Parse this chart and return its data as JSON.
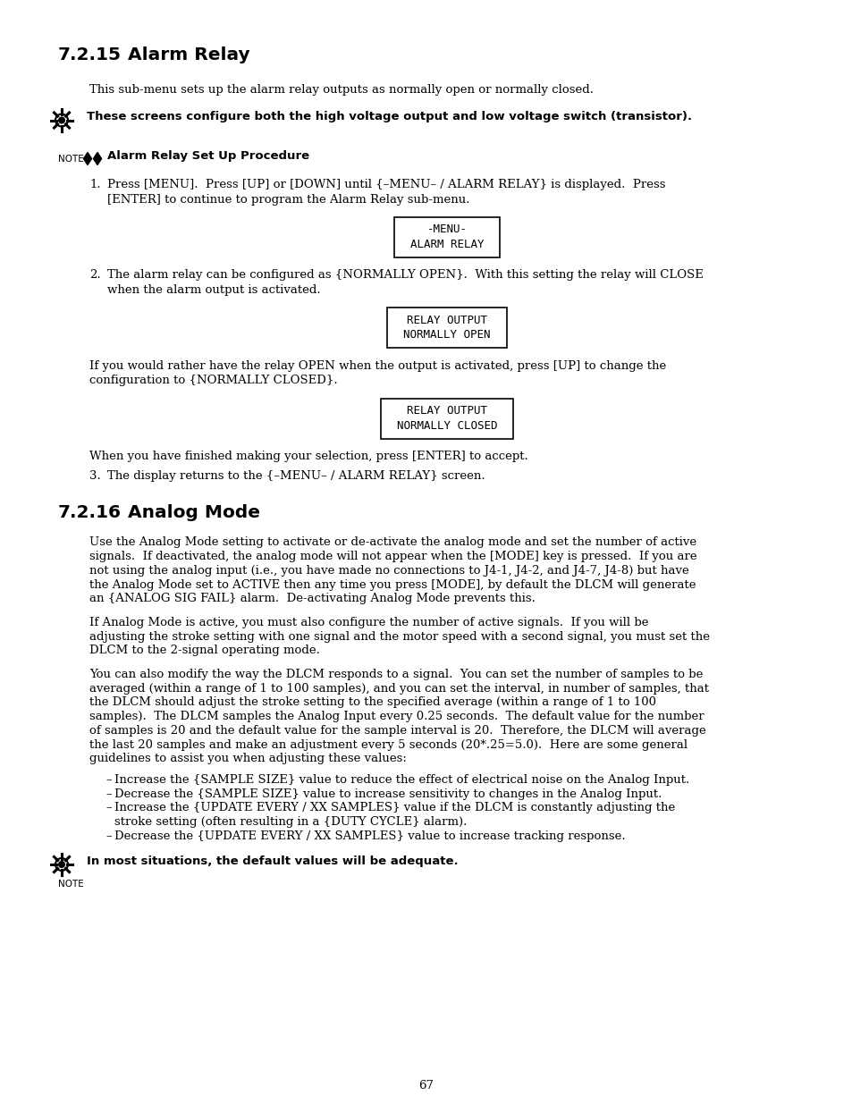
{
  "bg_color": "#ffffff",
  "page_number": "67",
  "section_715_title": "7.2.15    Alarm Relay",
  "section_716_title": "7.2.16    Analog Mode",
  "para_715_intro": "This sub-menu sets up the alarm relay outputs as normally open or normally closed.",
  "note_715_bold": "These screens configure both the high voltage output and low voltage switch (transistor).",
  "procedure_title": "Alarm Relay Set Up Procedure",
  "step1_line1": "Press [MENU].  Press [UP] or [DOWN] until {–MENU– / ALARM RELAY} is displayed.  Press",
  "step1_line2": "[ENTER] to continue to program the Alarm Relay sub-menu.",
  "box1_lines": [
    "-MENU-",
    "ALARM RELAY"
  ],
  "step2_line1": "The alarm relay can be configured as {NORMALLY OPEN}.  With this setting the relay will CLOSE",
  "step2_line2": "when the alarm output is activated.",
  "box2_lines": [
    "RELAY OUTPUT",
    "NORMALLY OPEN"
  ],
  "step2_cont_line1": "If you would rather have the relay OPEN when the output is activated, press [UP] to change the",
  "step2_cont_line2": "configuration to {NORMALLY CLOSED}.",
  "box3_lines": [
    "RELAY OUTPUT",
    "NORMALLY CLOSED"
  ],
  "step2_end": "When you have finished making your selection, press [ENTER] to accept.",
  "step3_text": "The display returns to the {–MENU– / ALARM RELAY} screen.",
  "para_716_1_lines": [
    "Use the Analog Mode setting to activate or de-activate the analog mode and set the number of active",
    "signals.  If deactivated, the analog mode will not appear when the [MODE] key is pressed.  If you are",
    "not using the analog input (i.e., you have made no connections to J4-1, J4-2, and J4-7, J4-8) but have",
    "the Analog Mode set to ACTIVE then any time you press [MODE], by default the DLCM will generate",
    "an {ANALOG SIG FAIL} alarm.  De-activating Analog Mode prevents this."
  ],
  "para_716_2_lines": [
    "If Analog Mode is active, you must also configure the number of active signals.  If you will be",
    "adjusting the stroke setting with one signal and the motor speed with a second signal, you must set the",
    "DLCM to the 2-signal operating mode."
  ],
  "para_716_3_lines": [
    "You can also modify the way the DLCM responds to a signal.  You can set the number of samples to be",
    "averaged (within a range of 1 to 100 samples), and you can set the interval, in number of samples, that",
    "the DLCM should adjust the stroke setting to the specified average (within a range of 1 to 100",
    "samples).  The DLCM samples the Analog Input every 0.25 seconds.  The default value for the number",
    "of samples is 20 and the default value for the sample interval is 20.  Therefore, the DLCM will average",
    "the last 20 samples and make an adjustment every 5 seconds (20*.25=5.0).  Here are some general",
    "guidelines to assist you when adjusting these values:"
  ],
  "bullet1_lines": [
    "Increase the {SAMPLE SIZE} value to reduce the effect of electrical noise on the Analog Input."
  ],
  "bullet2_lines": [
    "Decrease the {SAMPLE SIZE} value to increase sensitivity to changes in the Analog Input."
  ],
  "bullet3_lines": [
    "Increase the {UPDATE EVERY / XX SAMPLES} value if the DLCM is constantly adjusting the",
    "stroke setting (often resulting in a {DUTY CYCLE} alarm)."
  ],
  "bullet4_lines": [
    "Decrease the {UPDATE EVERY / XX SAMPLES} value to increase tracking response."
  ],
  "note_716_bold": "In most situations, the default values will be adequate."
}
